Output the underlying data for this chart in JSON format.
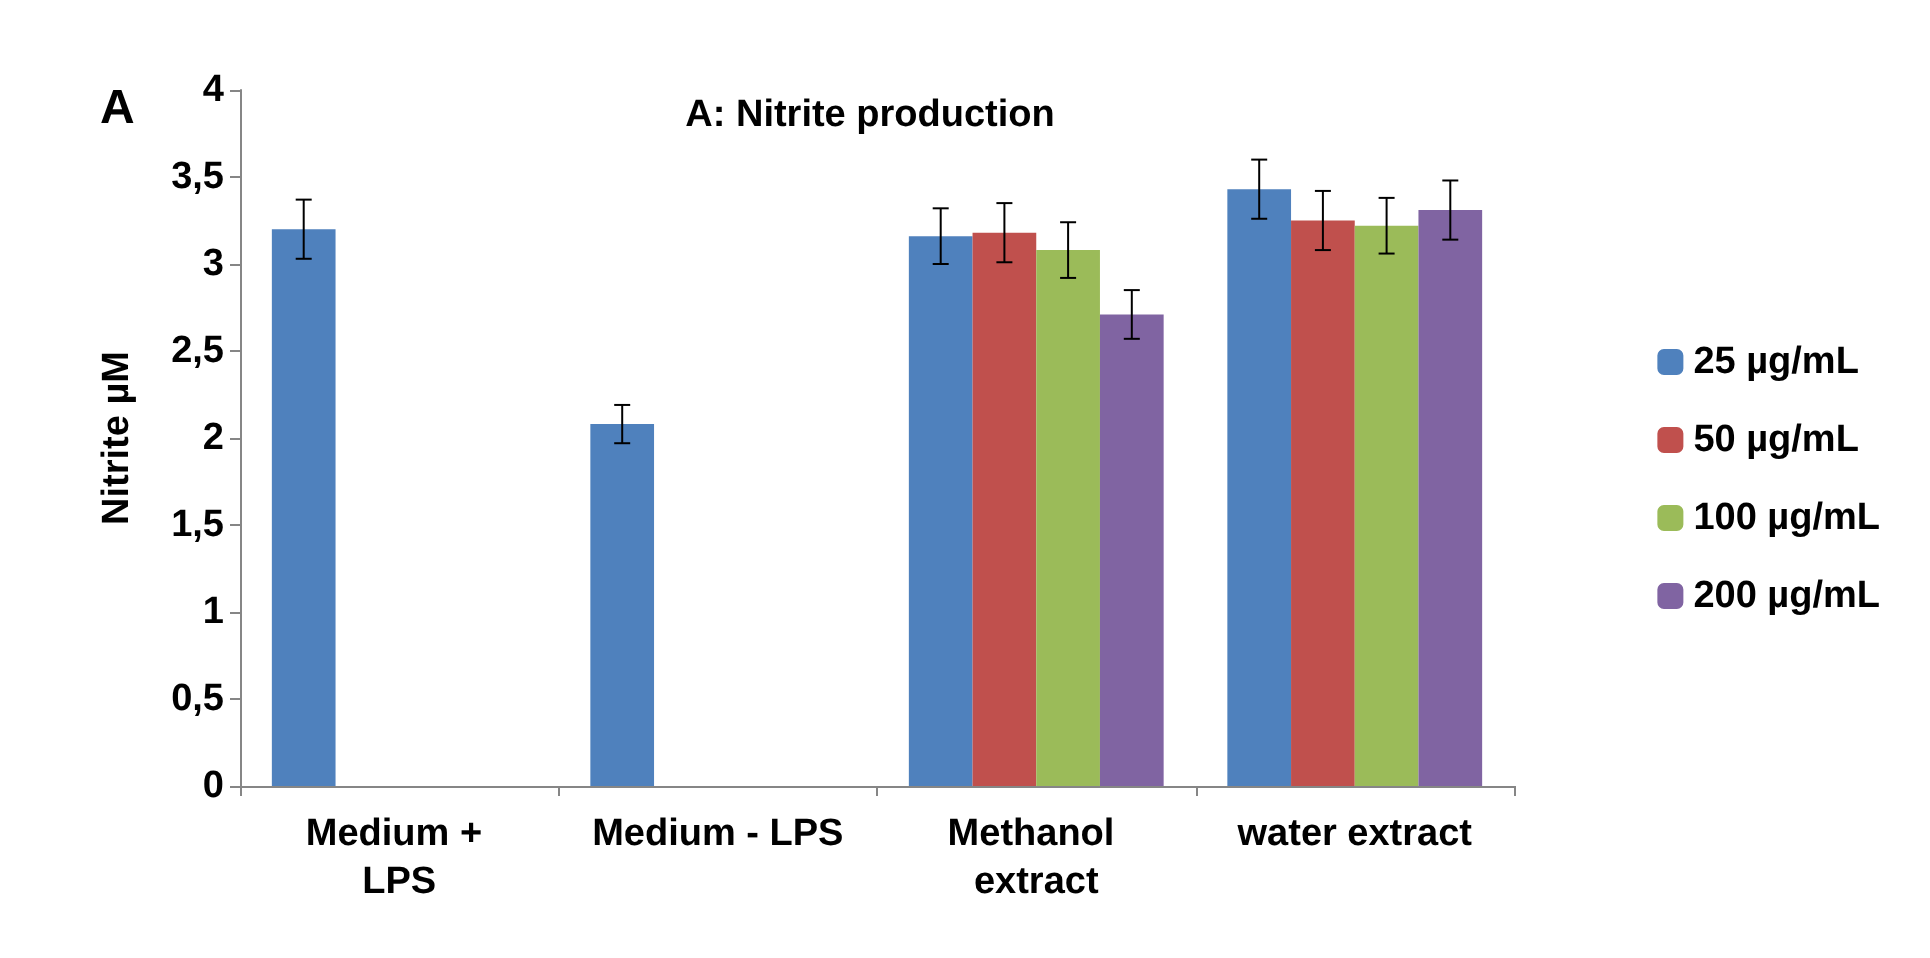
{
  "chart_data": {
    "type": "bar",
    "title": "A: Nitrite production",
    "ylabel": "Nitrite µM",
    "annotations": [
      "A"
    ],
    "categories": [
      "Medium + LPS",
      "Medium - LPS",
      "Methanol extract",
      "water extract"
    ],
    "series": [
      {
        "name": "25 µg/mL",
        "color": "#4f81bd",
        "values": [
          3.2,
          2.08,
          3.16,
          3.43
        ],
        "errors": [
          0.17,
          0.11,
          0.16,
          0.17
        ]
      },
      {
        "name": "50 µg/mL",
        "color": "#c0504d",
        "values": [
          null,
          null,
          3.18,
          3.25
        ],
        "errors": [
          null,
          null,
          0.17,
          0.17
        ]
      },
      {
        "name": "100 µg/mL",
        "color": "#9bbb59",
        "values": [
          null,
          null,
          3.08,
          3.22
        ],
        "errors": [
          null,
          null,
          0.16,
          0.16
        ]
      },
      {
        "name": "200 µg/mL",
        "color": "#8064a2",
        "values": [
          null,
          null,
          2.71,
          3.31
        ],
        "errors": [
          null,
          null,
          0.14,
          0.17
        ]
      }
    ],
    "ylim": [
      0,
      4
    ],
    "yticks": [
      0,
      {
        "value": 0.5,
        "label": "0,5"
      },
      1,
      {
        "value": 1.5,
        "label": "1,5"
      },
      2,
      {
        "value": 2.5,
        "label": "2,5"
      },
      3,
      {
        "value": 3.5,
        "label": "3,5"
      },
      4
    ],
    "grid": false,
    "legend": "right"
  }
}
